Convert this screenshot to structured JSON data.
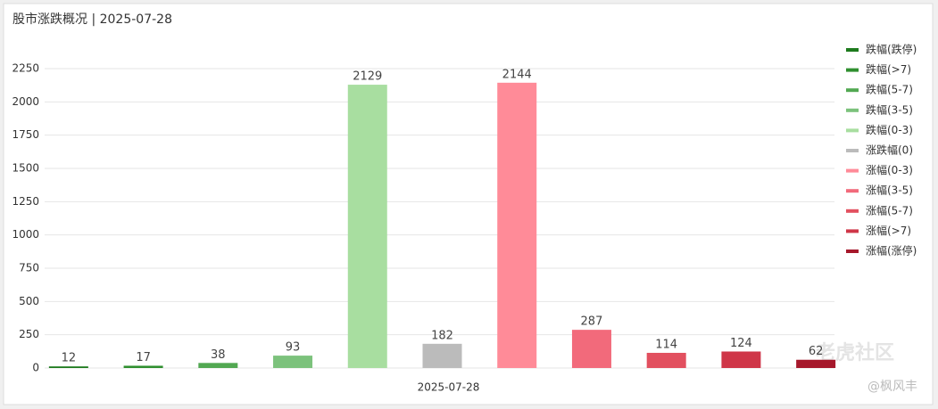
{
  "chart_data": {
    "type": "bar",
    "title": "股市涨跌概况 | 2025-07-28",
    "categories": [
      "2025-07-28"
    ],
    "series": [
      {
        "name": "跌幅(跌停)",
        "color": "#1d7a1d",
        "values": [
          12
        ]
      },
      {
        "name": "跌幅(>7)",
        "color": "#2f8f2f",
        "values": [
          17
        ]
      },
      {
        "name": "跌幅(5-7)",
        "color": "#52a852",
        "values": [
          38
        ]
      },
      {
        "name": "跌幅(3-5)",
        "color": "#7cc27c",
        "values": [
          93
        ]
      },
      {
        "name": "跌幅(0-3)",
        "color": "#a8dea0",
        "values": [
          2129
        ]
      },
      {
        "name": "涨跌幅(0)",
        "color": "#bbbbbb",
        "values": [
          182
        ]
      },
      {
        "name": "涨幅(0-3)",
        "color": "#ff8b98",
        "values": [
          2144
        ]
      },
      {
        "name": "涨幅(3-5)",
        "color": "#f26a7b",
        "values": [
          287
        ]
      },
      {
        "name": "涨幅(5-7)",
        "color": "#e2505f",
        "values": [
          114
        ]
      },
      {
        "name": "涨幅(>7)",
        "color": "#cf3648",
        "values": [
          124
        ]
      },
      {
        "name": "涨幅(涨停)",
        "color": "#a6182b",
        "values": [
          62
        ]
      }
    ],
    "ylim": [
      0,
      2250
    ],
    "yticks": [
      0,
      250,
      500,
      750,
      1000,
      1250,
      1500,
      1750,
      2000,
      2250
    ],
    "grid": true,
    "legend": "right"
  },
  "watermarks": [
    "老虎社区",
    "@枫风丰"
  ]
}
